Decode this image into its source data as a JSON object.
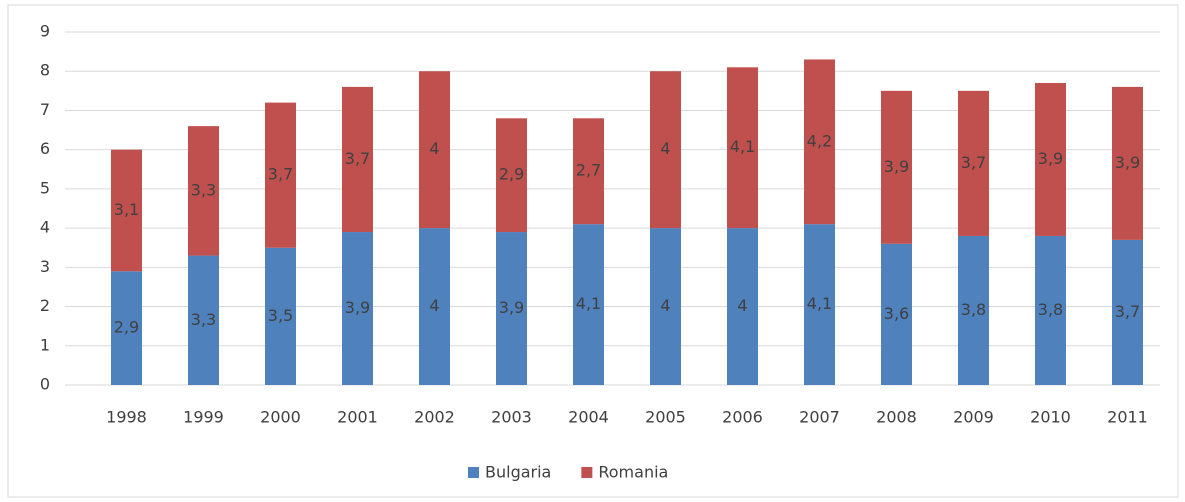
{
  "chart_data": {
    "type": "stacked_bar",
    "categories": [
      "1998",
      "1999",
      "2000",
      "2001",
      "2002",
      "2003",
      "2004",
      "2005",
      "2006",
      "2007",
      "2008",
      "2009",
      "2010",
      "2011"
    ],
    "series": [
      {
        "name": "Bulgaria",
        "color": "#4f81bd",
        "values": [
          2.9,
          3.3,
          3.5,
          3.9,
          4,
          3.9,
          4.1,
          4,
          4,
          4.1,
          3.6,
          3.8,
          3.8,
          3.7
        ],
        "value_labels": [
          "2,9",
          "3,3",
          "3,5",
          "3,9",
          "4",
          "3,9",
          "4,1",
          "4",
          "4",
          "4,1",
          "3,6",
          "3,8",
          "3,8",
          "3,7"
        ]
      },
      {
        "name": "Romania",
        "color": "#c0504d",
        "values": [
          3.1,
          3.3,
          3.7,
          3.7,
          4,
          2.9,
          2.7,
          4,
          4.1,
          4.2,
          3.9,
          3.7,
          3.9,
          3.9
        ],
        "value_labels": [
          "3,1",
          "3,3",
          "3,7",
          "3,7",
          "4",
          "2,9",
          "2,7",
          "4",
          "4,1",
          "4,2",
          "3,9",
          "3,7",
          "3,9",
          "3,9"
        ]
      }
    ],
    "ylim": [
      0,
      9
    ],
    "yticks": [
      0,
      1,
      2,
      3,
      4,
      5,
      6,
      7,
      8,
      9
    ],
    "grid": true,
    "legend": "bottom"
  }
}
